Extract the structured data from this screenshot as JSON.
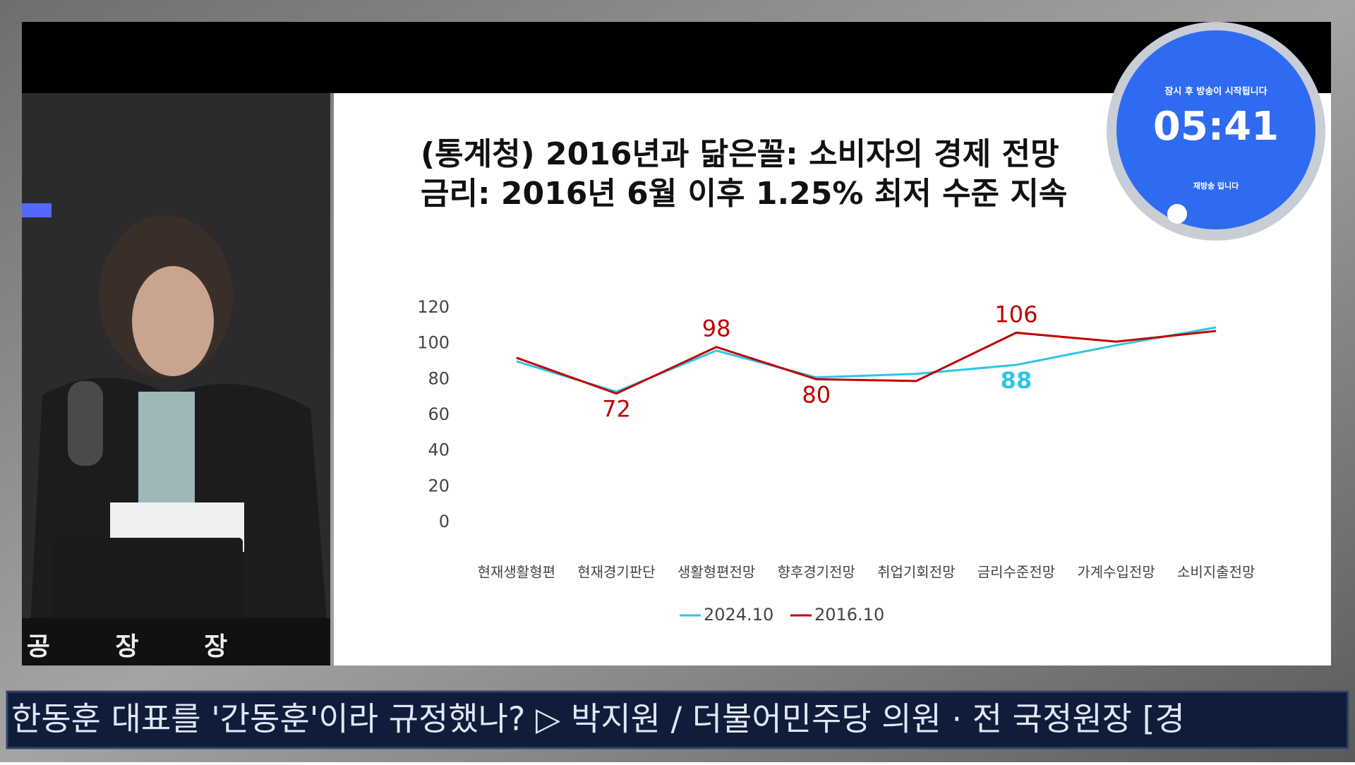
{
  "chart_data": {
    "type": "line",
    "title": "(통계청) 2016년과 닮은꼴: 소비자의 경제 전망",
    "subtitle": "금리: 2016년 6월 이후 1.25% 최저 수준 지속",
    "categories": [
      "현재생활형편",
      "현재경기판단",
      "생활형편전망",
      "향후경기전망",
      "취업기회전망",
      "금리수준전망",
      "가계수입전망",
      "소비지출전망"
    ],
    "series": [
      {
        "name": "2024.10",
        "color": "#2ec4e6",
        "values": [
          90,
          73,
          96,
          81,
          83,
          88,
          99,
          109
        ],
        "labeled_points": [
          5
        ]
      },
      {
        "name": "2016.10",
        "color": "#c00000",
        "values": [
          92,
          72,
          98,
          80,
          79,
          106,
          101,
          107
        ],
        "labeled_points": [
          1,
          2,
          3,
          5
        ]
      }
    ],
    "ylim": [
      0,
      120
    ],
    "yticks": [
      0,
      20,
      40,
      60,
      80,
      100,
      120
    ],
    "grid": false,
    "legend": "bottom"
  },
  "overlay": {
    "timer_caption": "잠시 후 방송이 시작됩니다",
    "timer": "05:41",
    "timer_note": "재방송 입니다",
    "nameplate": "공 장 장",
    "ticker": "한동훈 대표를 '간동훈'이라 규정했나? ▷ 박지원 / 더불어민주당 의원 · 전 국정원장 [경"
  }
}
